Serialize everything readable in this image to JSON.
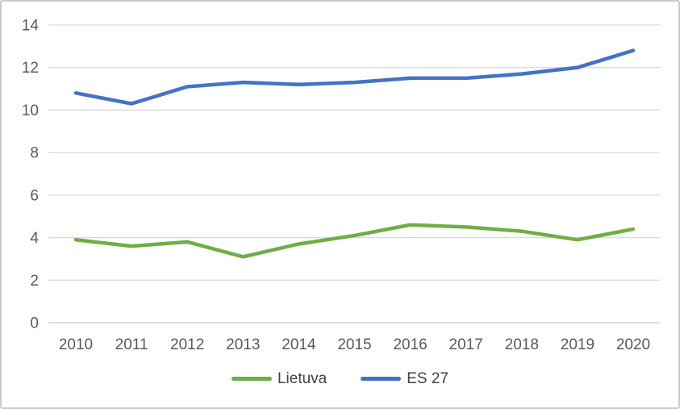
{
  "chart_data": {
    "type": "line",
    "title": "",
    "xlabel": "",
    "ylabel": "",
    "categories": [
      "2010",
      "2011",
      "2012",
      "2013",
      "2014",
      "2015",
      "2016",
      "2017",
      "2018",
      "2019",
      "2020"
    ],
    "series": [
      {
        "name": "Lietuva",
        "color": "#70AD47",
        "values": [
          3.9,
          3.6,
          3.8,
          3.1,
          3.7,
          4.1,
          4.6,
          4.5,
          4.3,
          3.9,
          4.4
        ]
      },
      {
        "name": "ES 27",
        "color": "#4472C4",
        "values": [
          10.8,
          10.3,
          11.1,
          11.3,
          11.2,
          11.3,
          11.5,
          11.5,
          11.7,
          12.0,
          12.8
        ]
      }
    ],
    "ylim": [
      0,
      14
    ],
    "yticks": [
      0,
      2,
      4,
      6,
      8,
      10,
      12,
      14
    ],
    "grid": true,
    "legend_position": "bottom"
  },
  "style": {
    "gridline_color": "#d9d9d9",
    "baseline_color": "#c6c6c6",
    "tick_label_color": "#595959",
    "frame_border_color": "#c9c9c9"
  }
}
